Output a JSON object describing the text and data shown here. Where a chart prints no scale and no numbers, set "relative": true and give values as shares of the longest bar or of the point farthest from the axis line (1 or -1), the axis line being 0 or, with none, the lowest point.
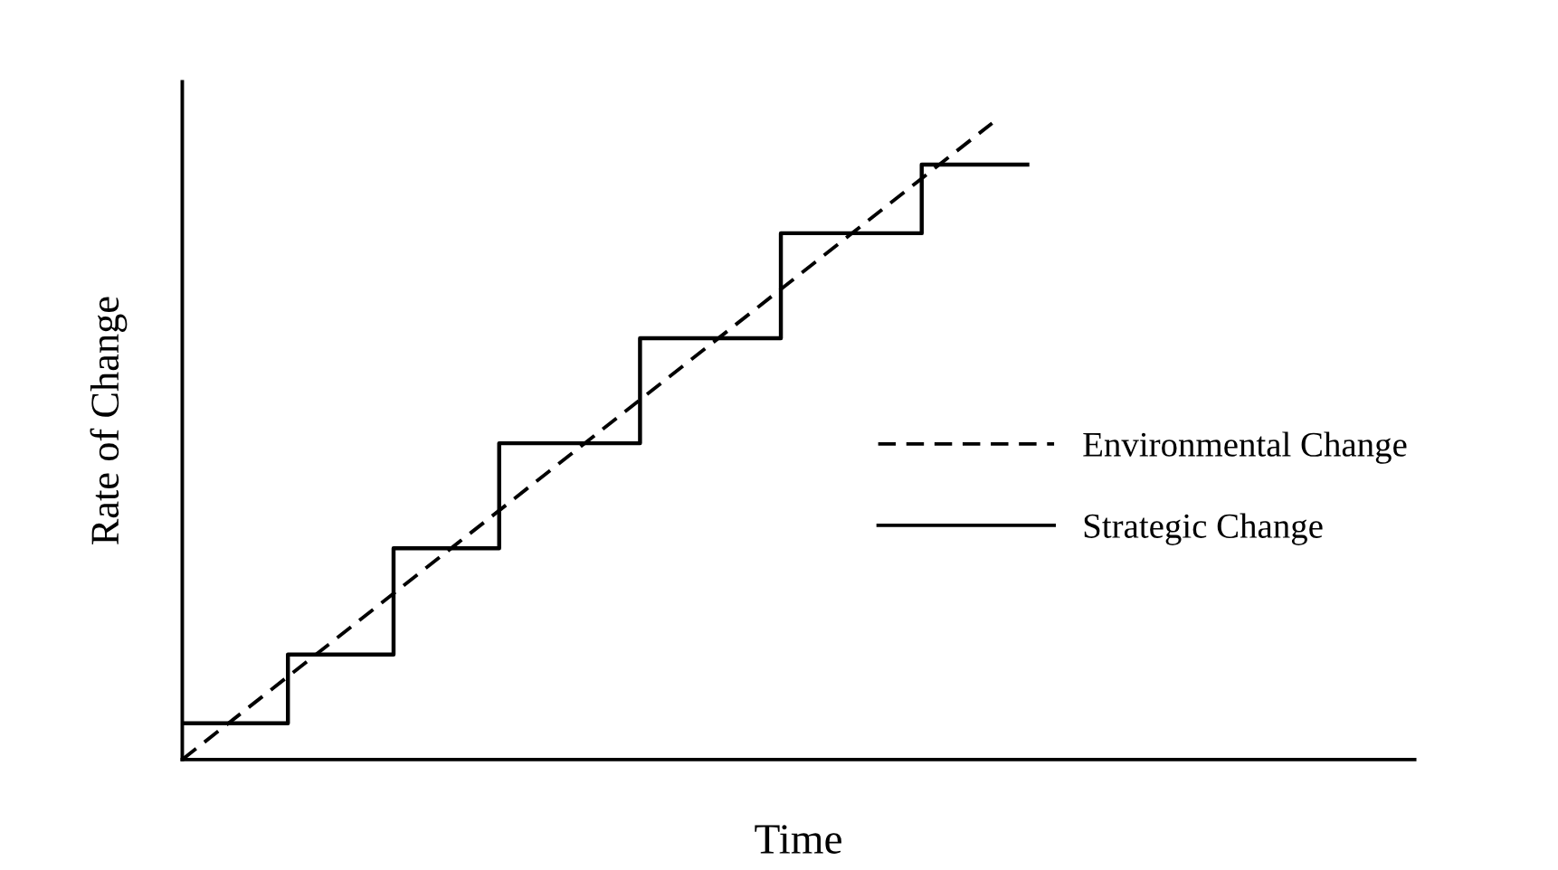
{
  "chart_data": {
    "type": "step",
    "relative": true,
    "xlabel": "Time",
    "ylabel": "Rate of Change",
    "legend": "right",
    "categories": [
      null,
      null,
      null,
      null,
      null,
      null,
      null,
      null,
      null,
      null,
      null,
      null,
      null,
      null,
      null,
      null,
      null,
      null,
      null,
      null,
      null,
      null,
      null,
      null,
      null,
      null,
      null,
      null,
      null,
      null,
      null,
      null,
      null,
      null,
      null,
      null
    ],
    "series": [
      {
        "name": "Environmental Change",
        "type": "line",
        "line_style": "dashed",
        "color": "#000000",
        "values": [
          0,
          null,
          null,
          null,
          null,
          null,
          null,
          null,
          null,
          null,
          null,
          null,
          null,
          null,
          null,
          null,
          null,
          null,
          null,
          null,
          null,
          null,
          null,
          1,
          null,
          null,
          null,
          null,
          null,
          null,
          null,
          null,
          null,
          null,
          null,
          null
        ]
      },
      {
        "name": "Strategic Change",
        "line_style": "solid",
        "color": "#000000",
        "values": [
          0.057,
          0.057,
          0.057,
          0.165,
          0.165,
          0.165,
          0.332,
          0.332,
          0.332,
          0.497,
          0.497,
          0.497,
          0.497,
          0.662,
          0.662,
          0.662,
          0.662,
          0.827,
          0.827,
          0.827,
          0.827,
          0.935,
          0.935,
          0.935,
          0.935,
          null,
          null,
          null,
          null,
          null,
          null,
          null,
          null,
          null,
          null,
          null
        ]
      }
    ]
  }
}
